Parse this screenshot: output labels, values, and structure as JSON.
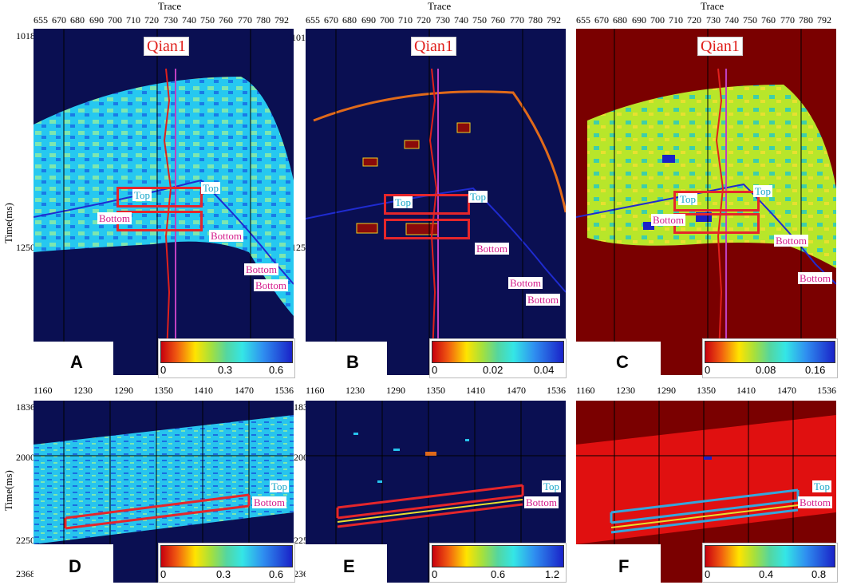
{
  "top_row": {
    "trace_title": "Trace",
    "ylabel": "Time(ms)",
    "x_ticks_A": [
      "655",
      "670",
      "680",
      "690",
      "700",
      "710",
      "720",
      "730",
      "740",
      "750",
      "760",
      "770",
      "780",
      "792"
    ],
    "x_ticks_B": [
      "655",
      "670",
      "680",
      "690",
      "700",
      "710",
      "720",
      "730",
      "740",
      "750",
      "760",
      "770",
      "780",
      "792"
    ],
    "x_ticks_C": [
      "655",
      "670",
      "680",
      "690",
      "700",
      "710",
      "720",
      "730",
      "740",
      "750",
      "760",
      "770",
      "780",
      "792"
    ],
    "y_ticks": [
      "1018",
      "1250"
    ],
    "well_name": "Qian1",
    "top_label": "Top",
    "bottom_label": "Bottom"
  },
  "bottom_row": {
    "ylabel": "Time(ms)",
    "x_ticks": [
      "1160",
      "1230",
      "1290",
      "1350",
      "1410",
      "1470",
      "1536"
    ],
    "y_ticks": [
      "1836",
      "2000",
      "2250",
      "2368"
    ],
    "top_label": "Top",
    "bottom_label": "Bottom"
  },
  "panels": [
    {
      "letter": "A",
      "cbar_min": "0",
      "cbar_mid": "0.3",
      "cbar_max": "0.6"
    },
    {
      "letter": "B",
      "cbar_min": "0",
      "cbar_mid": "0.02",
      "cbar_max": "0.04"
    },
    {
      "letter": "C",
      "cbar_min": "0",
      "cbar_mid": "0.08",
      "cbar_max": "0.16"
    },
    {
      "letter": "D",
      "cbar_min": "0",
      "cbar_mid": "0.3",
      "cbar_max": "0.6"
    },
    {
      "letter": "E",
      "cbar_min": "0",
      "cbar_mid": "0.6",
      "cbar_max": "1.2"
    },
    {
      "letter": "F",
      "cbar_min": "0",
      "cbar_mid": "0.4",
      "cbar_max": "0.8"
    }
  ],
  "colors": {
    "background_navy": "#0a0f52",
    "background_dark_red": "#7a0000",
    "well_line": "#e0201c",
    "top_label": "#18a7c9",
    "bottom_label": "#d41c8c",
    "highlight_box": "#e5262b",
    "highlight_box_blue": "#35a6dc"
  }
}
